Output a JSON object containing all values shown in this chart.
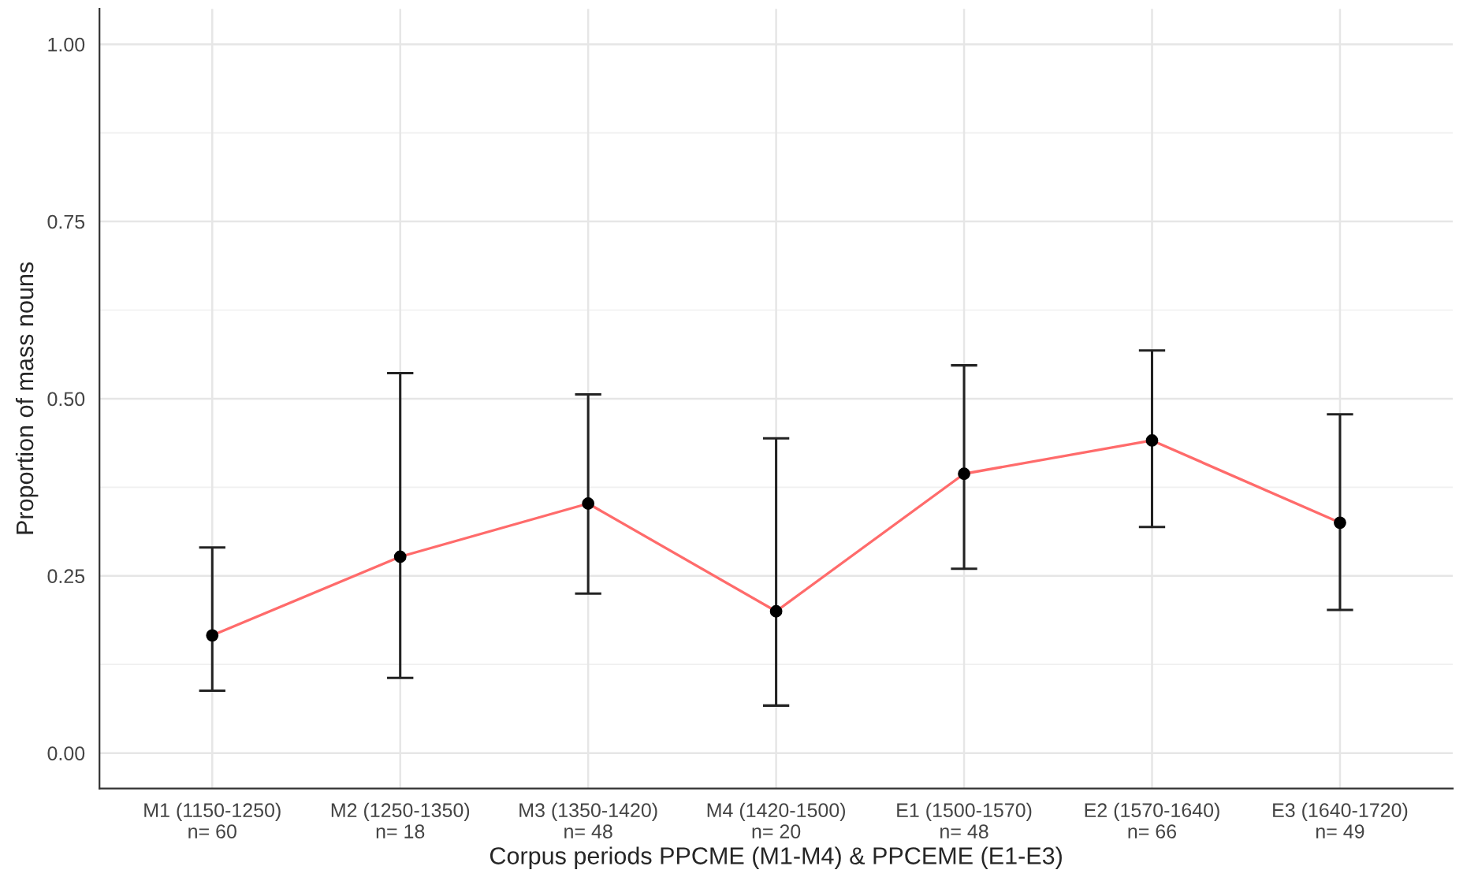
{
  "chart_data": {
    "type": "line",
    "xlabel": "Corpus periods PPCME (M1-M4) & PPCEME (E1-E3)",
    "ylabel": "Proportion of mass nouns",
    "categories": [
      "M1 (1150-1250)\nn= 60",
      "M2 (1250-1350)\nn= 18",
      "M3 (1350-1420)\nn= 48",
      "M4 (1420-1500)\nn= 20",
      "E1 (1500-1570)\nn= 48",
      "E2 (1570-1640)\nn= 66",
      "E3 (1640-1720)\nn= 49"
    ],
    "series": [
      {
        "color": "#ff6b6b",
        "colors": [
          "#000000",
          "#000000",
          "#000000",
          "#000000",
          "#000000",
          "#000000",
          "#000000"
        ],
        "values": [
          0.166,
          0.277,
          0.352,
          0.2,
          0.394,
          0.441,
          0.325
        ],
        "errors": [
          [
            0.088,
            0.29
          ],
          [
            0.106,
            0.536
          ],
          [
            0.225,
            0.506
          ],
          [
            0.067,
            0.444
          ],
          [
            0.26,
            0.547
          ],
          [
            0.319,
            0.568
          ],
          [
            0.202,
            0.478
          ]
        ]
      }
    ],
    "ylim": [
      -0.05,
      1.05
    ],
    "yticks": [
      {
        "value": 0,
        "label": "0.00"
      },
      {
        "value": 0.25,
        "label": "0.25"
      },
      {
        "value": 0.5,
        "label": "0.50"
      },
      {
        "value": 0.75,
        "label": "0.75"
      },
      {
        "value": 1,
        "label": "1.00"
      }
    ],
    "grid": true,
    "marker": "circle",
    "line_style": "solid"
  }
}
